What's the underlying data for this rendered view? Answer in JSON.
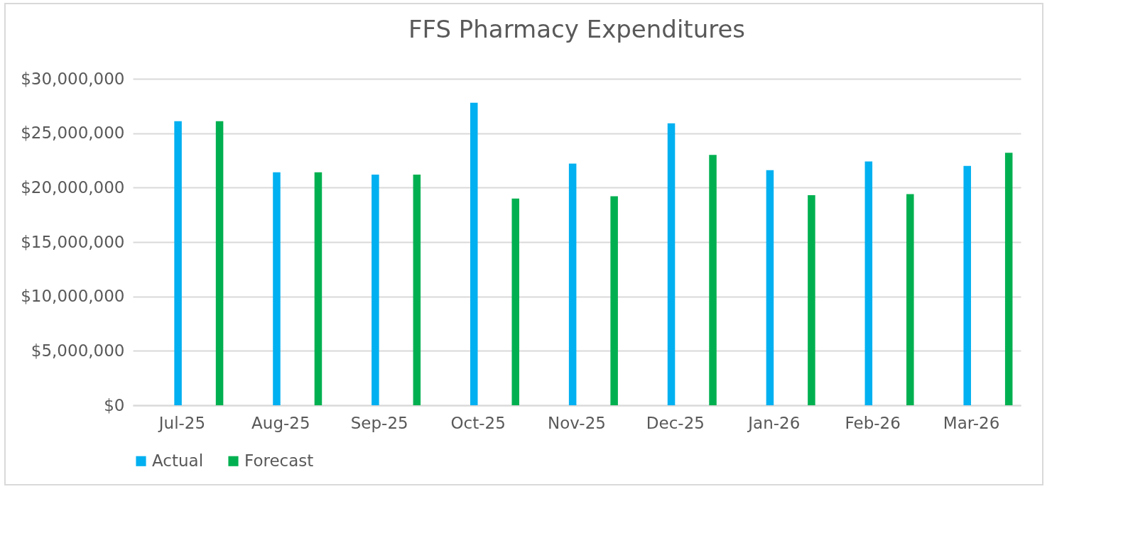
{
  "chart_data": {
    "type": "bar",
    "title": "FFS Pharmacy Expenditures",
    "categories": [
      "Jul-25",
      "Aug-25",
      "Sep-25",
      "Oct-25",
      "Nov-25",
      "Dec-25",
      "Jan-26",
      "Feb-26",
      "Mar-26"
    ],
    "series": [
      {
        "name": "Actual",
        "color": "#00b0f0",
        "values": [
          26100000,
          21400000,
          21200000,
          27800000,
          22200000,
          25900000,
          21600000,
          22400000,
          22000000
        ]
      },
      {
        "name": "Forecast",
        "color": "#00b050",
        "values": [
          26100000,
          21400000,
          21200000,
          19000000,
          19200000,
          23000000,
          19300000,
          19400000,
          23200000
        ]
      }
    ],
    "ylim": [
      0,
      30000000
    ],
    "yticks": [
      {
        "value": 0,
        "label": "$0"
      },
      {
        "value": 5000000,
        "label": "$5,000,000"
      },
      {
        "value": 10000000,
        "label": "$10,000,000"
      },
      {
        "value": 15000000,
        "label": "$15,000,000"
      },
      {
        "value": 20000000,
        "label": "$20,000,000"
      },
      {
        "value": 25000000,
        "label": "$25,000,000"
      },
      {
        "value": 30000000,
        "label": "$30,000,000"
      }
    ],
    "grid": "y",
    "legend": "bottom"
  }
}
